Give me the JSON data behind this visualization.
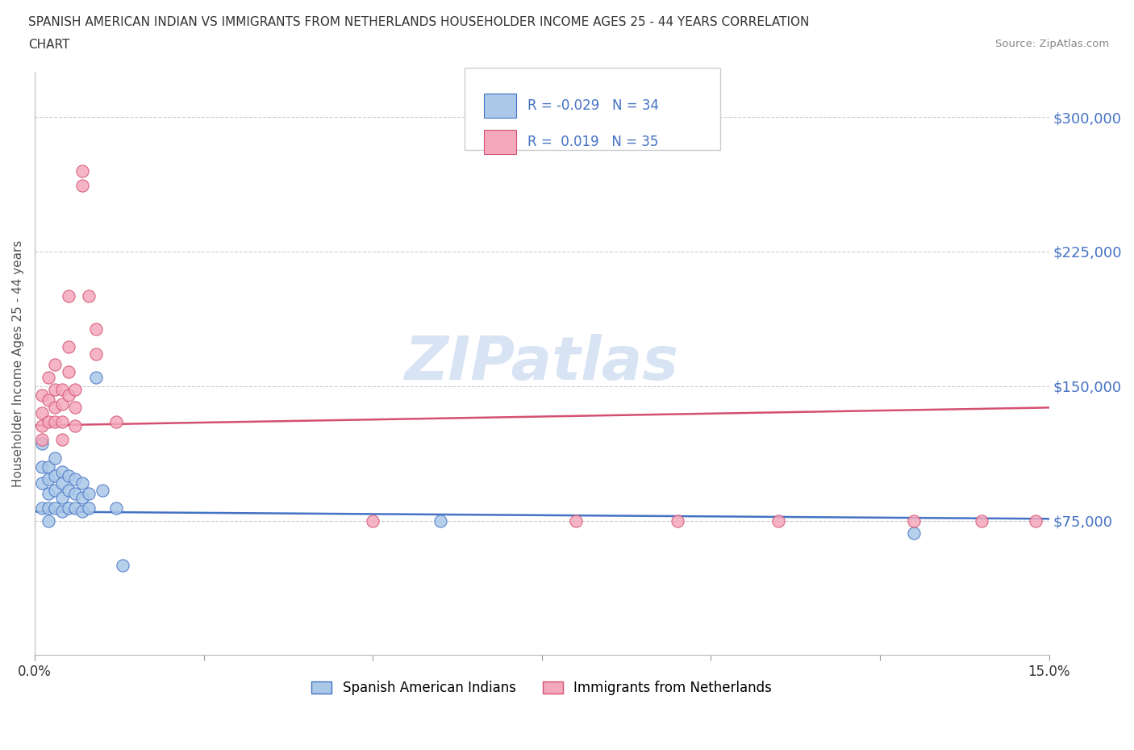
{
  "title_line1": "SPANISH AMERICAN INDIAN VS IMMIGRANTS FROM NETHERLANDS HOUSEHOLDER INCOME AGES 25 - 44 YEARS CORRELATION",
  "title_line2": "CHART",
  "source": "Source: ZipAtlas.com",
  "ylabel": "Householder Income Ages 25 - 44 years",
  "xlim": [
    0.0,
    0.15
  ],
  "ylim": [
    0,
    325000
  ],
  "yticks": [
    75000,
    150000,
    225000,
    300000
  ],
  "ytick_labels": [
    "$75,000",
    "$150,000",
    "$225,000",
    "$300,000"
  ],
  "xtick_pos": [
    0.0,
    0.025,
    0.05,
    0.075,
    0.1,
    0.125,
    0.15
  ],
  "xtick_labels": [
    "0.0%",
    "",
    "",
    "",
    "",
    "",
    "15.0%"
  ],
  "legend_label1": "Spanish American Indians",
  "legend_label2": "Immigrants from Netherlands",
  "R1": -0.029,
  "N1": 34,
  "R2": 0.019,
  "N2": 35,
  "color_blue": "#aac8e8",
  "color_pink": "#f4a8bc",
  "line_color_blue": "#4472c4",
  "line_color_pink": "#d45070",
  "watermark_color": "#c8d8ee",
  "background_color": "#ffffff",
  "grid_color": "#cccccc",
  "trend_blue_y0": 80000,
  "trend_blue_y1": 76000,
  "trend_pink_y0": 128000,
  "trend_pink_y1": 138000,
  "scatter_blue_x": [
    0.001,
    0.001,
    0.001,
    0.001,
    0.002,
    0.002,
    0.002,
    0.002,
    0.002,
    0.003,
    0.003,
    0.003,
    0.003,
    0.004,
    0.004,
    0.004,
    0.004,
    0.005,
    0.005,
    0.005,
    0.006,
    0.006,
    0.006,
    0.007,
    0.007,
    0.007,
    0.008,
    0.008,
    0.009,
    0.01,
    0.012,
    0.013,
    0.06,
    0.13
  ],
  "scatter_blue_y": [
    118000,
    105000,
    96000,
    82000,
    105000,
    98000,
    90000,
    82000,
    75000,
    110000,
    100000,
    92000,
    82000,
    102000,
    96000,
    88000,
    80000,
    100000,
    92000,
    82000,
    98000,
    90000,
    82000,
    96000,
    88000,
    80000,
    90000,
    82000,
    155000,
    92000,
    82000,
    50000,
    75000,
    68000
  ],
  "scatter_pink_x": [
    0.001,
    0.001,
    0.001,
    0.001,
    0.002,
    0.002,
    0.002,
    0.003,
    0.003,
    0.003,
    0.003,
    0.004,
    0.004,
    0.004,
    0.004,
    0.005,
    0.005,
    0.005,
    0.005,
    0.006,
    0.006,
    0.006,
    0.007,
    0.007,
    0.008,
    0.009,
    0.009,
    0.012,
    0.05,
    0.08,
    0.095,
    0.11,
    0.13,
    0.14,
    0.148
  ],
  "scatter_pink_y": [
    145000,
    135000,
    128000,
    120000,
    155000,
    142000,
    130000,
    162000,
    148000,
    138000,
    130000,
    148000,
    140000,
    130000,
    120000,
    200000,
    172000,
    158000,
    145000,
    148000,
    138000,
    128000,
    270000,
    262000,
    200000,
    182000,
    168000,
    130000,
    75000,
    75000,
    75000,
    75000,
    75000,
    75000,
    75000
  ]
}
